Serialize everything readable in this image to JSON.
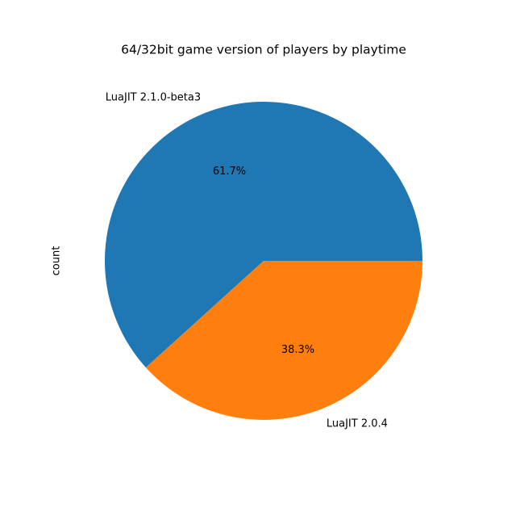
{
  "chart_data": {
    "type": "pie",
    "title": "64/32bit game version of players by playtime",
    "ylabel": "count",
    "categories": [
      "LuaJIT 2.1.0-beta3",
      "LuaJIT 2.0.4"
    ],
    "values": [
      61.7,
      38.3
    ],
    "value_labels": [
      "61.7%",
      "38.3%"
    ],
    "colors": [
      "#1f77b4",
      "#ff7f0e"
    ]
  }
}
